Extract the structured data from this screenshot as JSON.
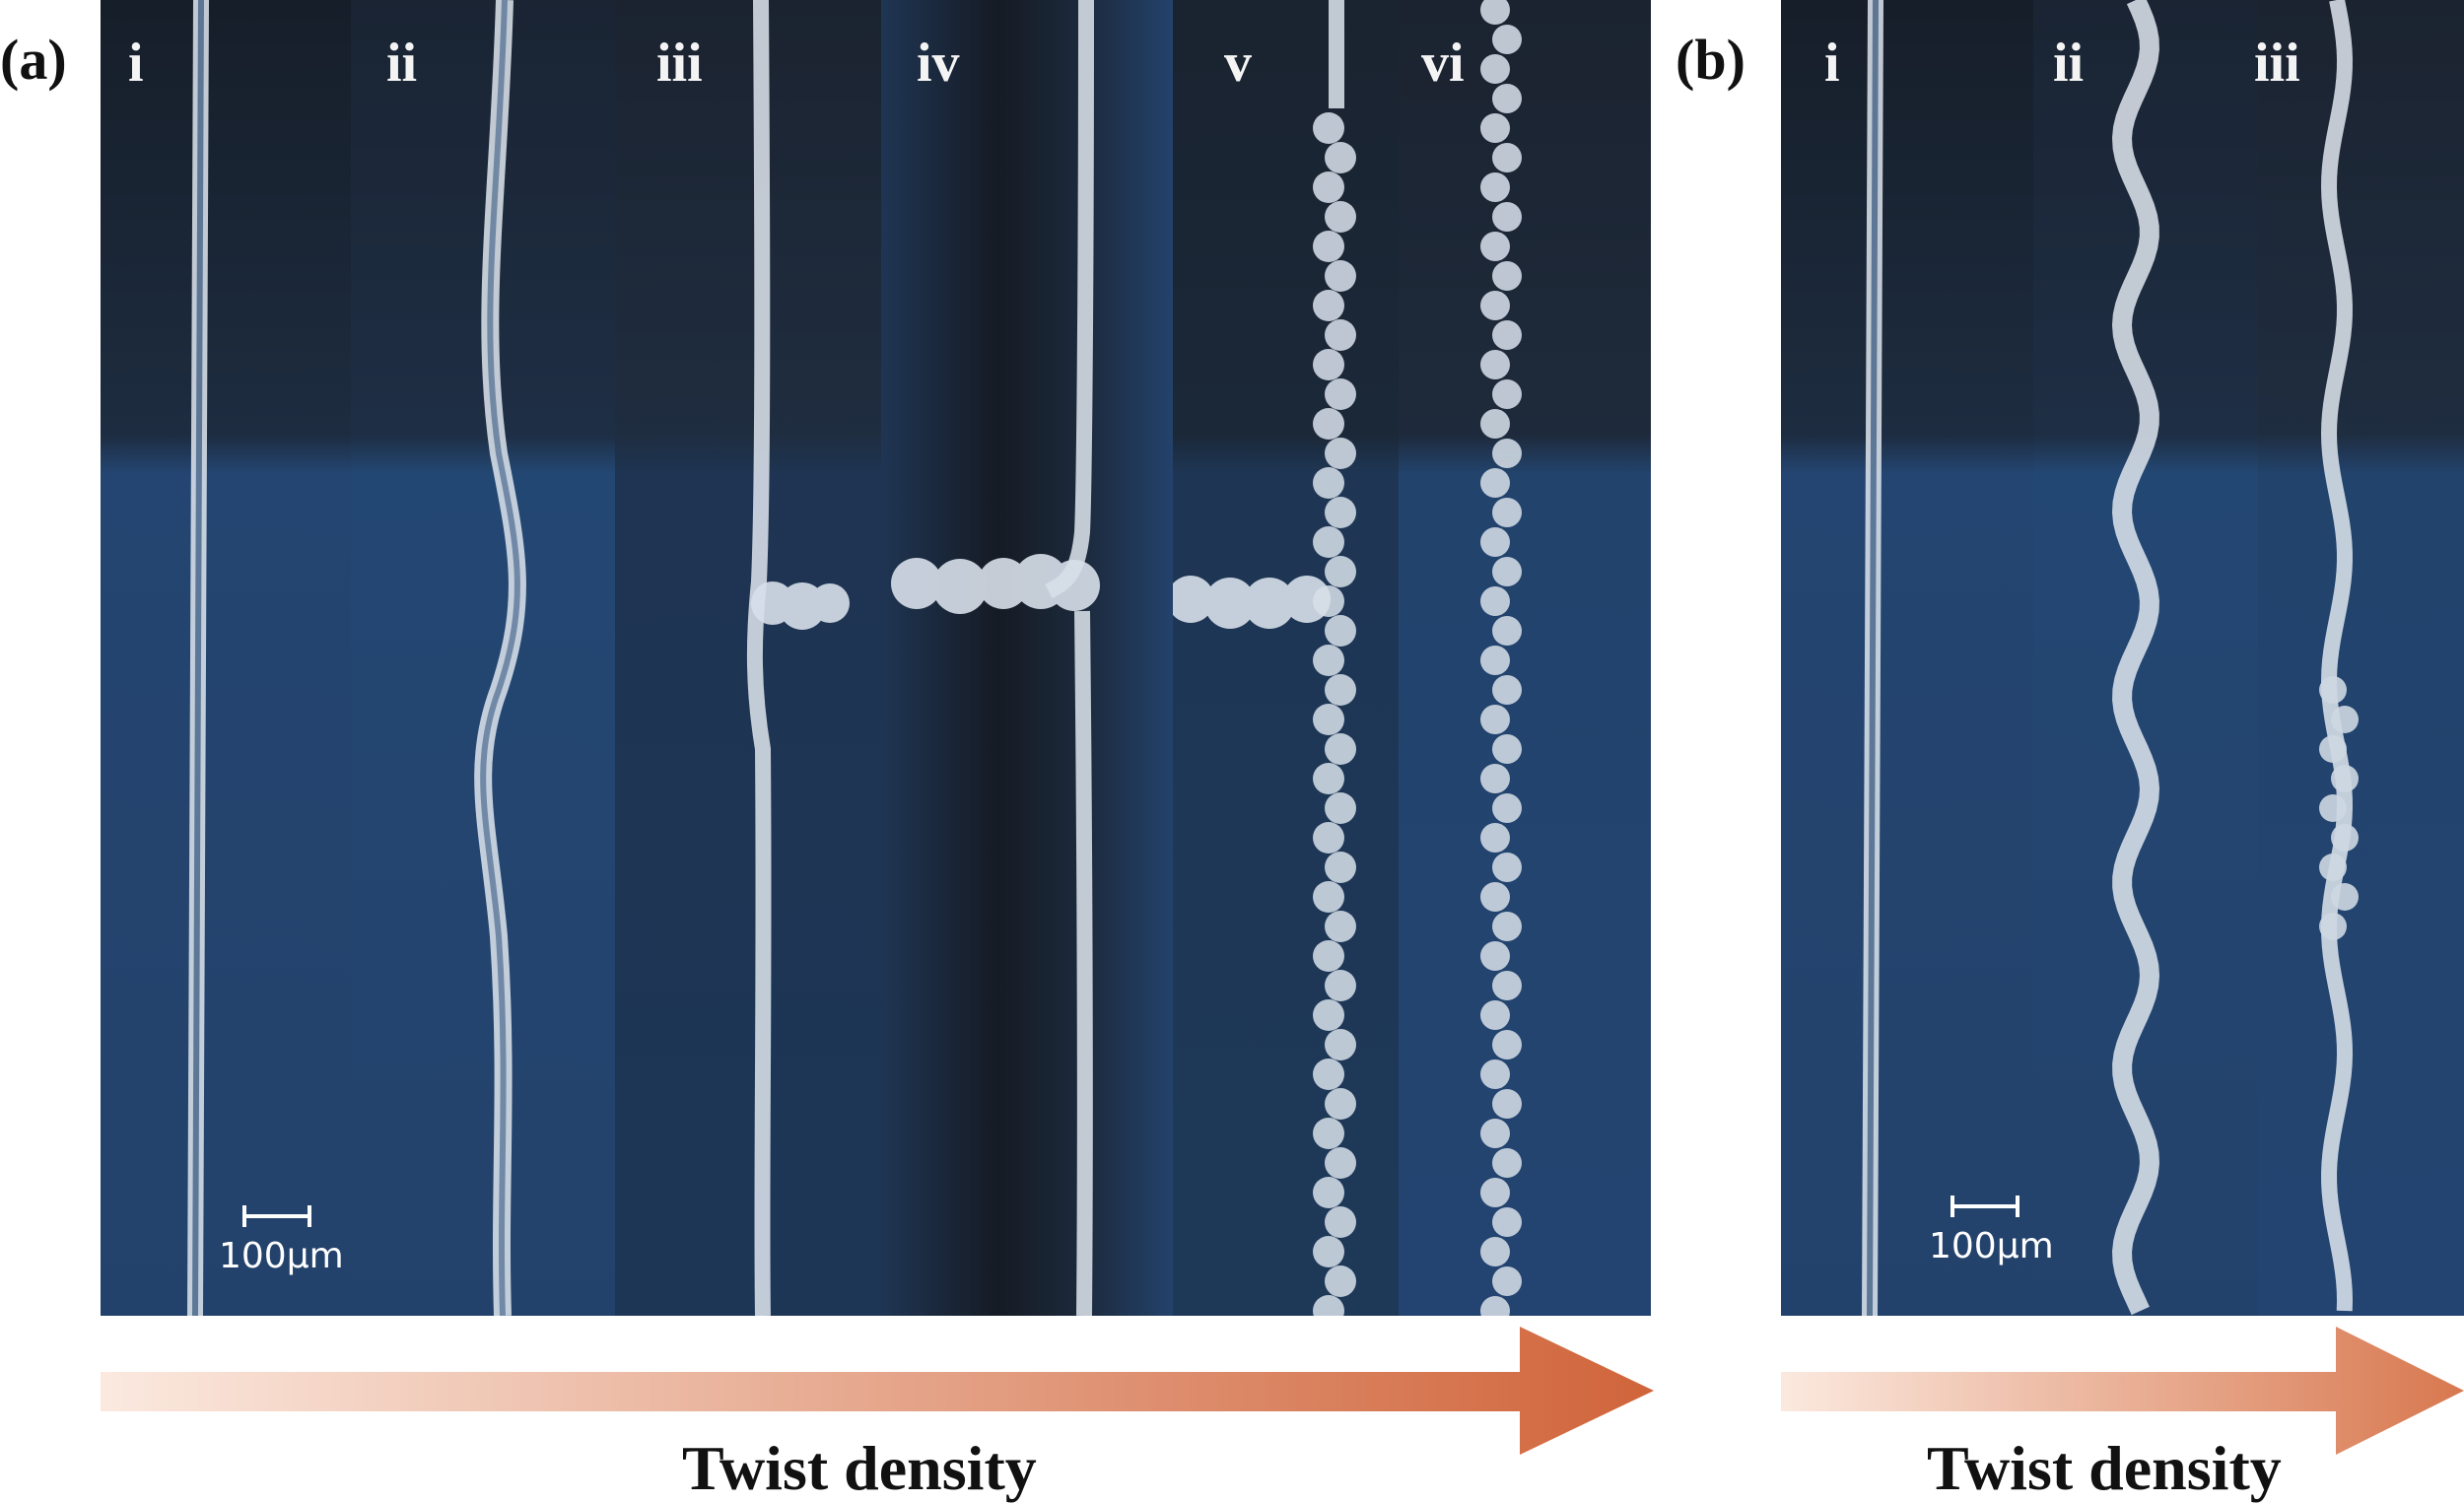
{
  "panels": [
    {
      "letter": "(a)",
      "strips": [
        {
          "label": "i"
        },
        {
          "label": "ii"
        },
        {
          "label": "iii"
        },
        {
          "label": "iv"
        },
        {
          "label": "v"
        },
        {
          "label": "vi"
        }
      ],
      "scale_bar": "100μm",
      "axis_label": "Twist density"
    },
    {
      "letter": "(b)",
      "strips": [
        {
          "label": "i"
        },
        {
          "label": "ii"
        },
        {
          "label": "iii"
        }
      ],
      "scale_bar": "100μm",
      "axis_label": "Twist density"
    }
  ],
  "colors": {
    "background_dark": "#1a2433",
    "background_blue": "#23426b",
    "fiber": "#dfe6ef",
    "arrow_start": "#fbe9df",
    "arrow_end": "#d0643a"
  }
}
